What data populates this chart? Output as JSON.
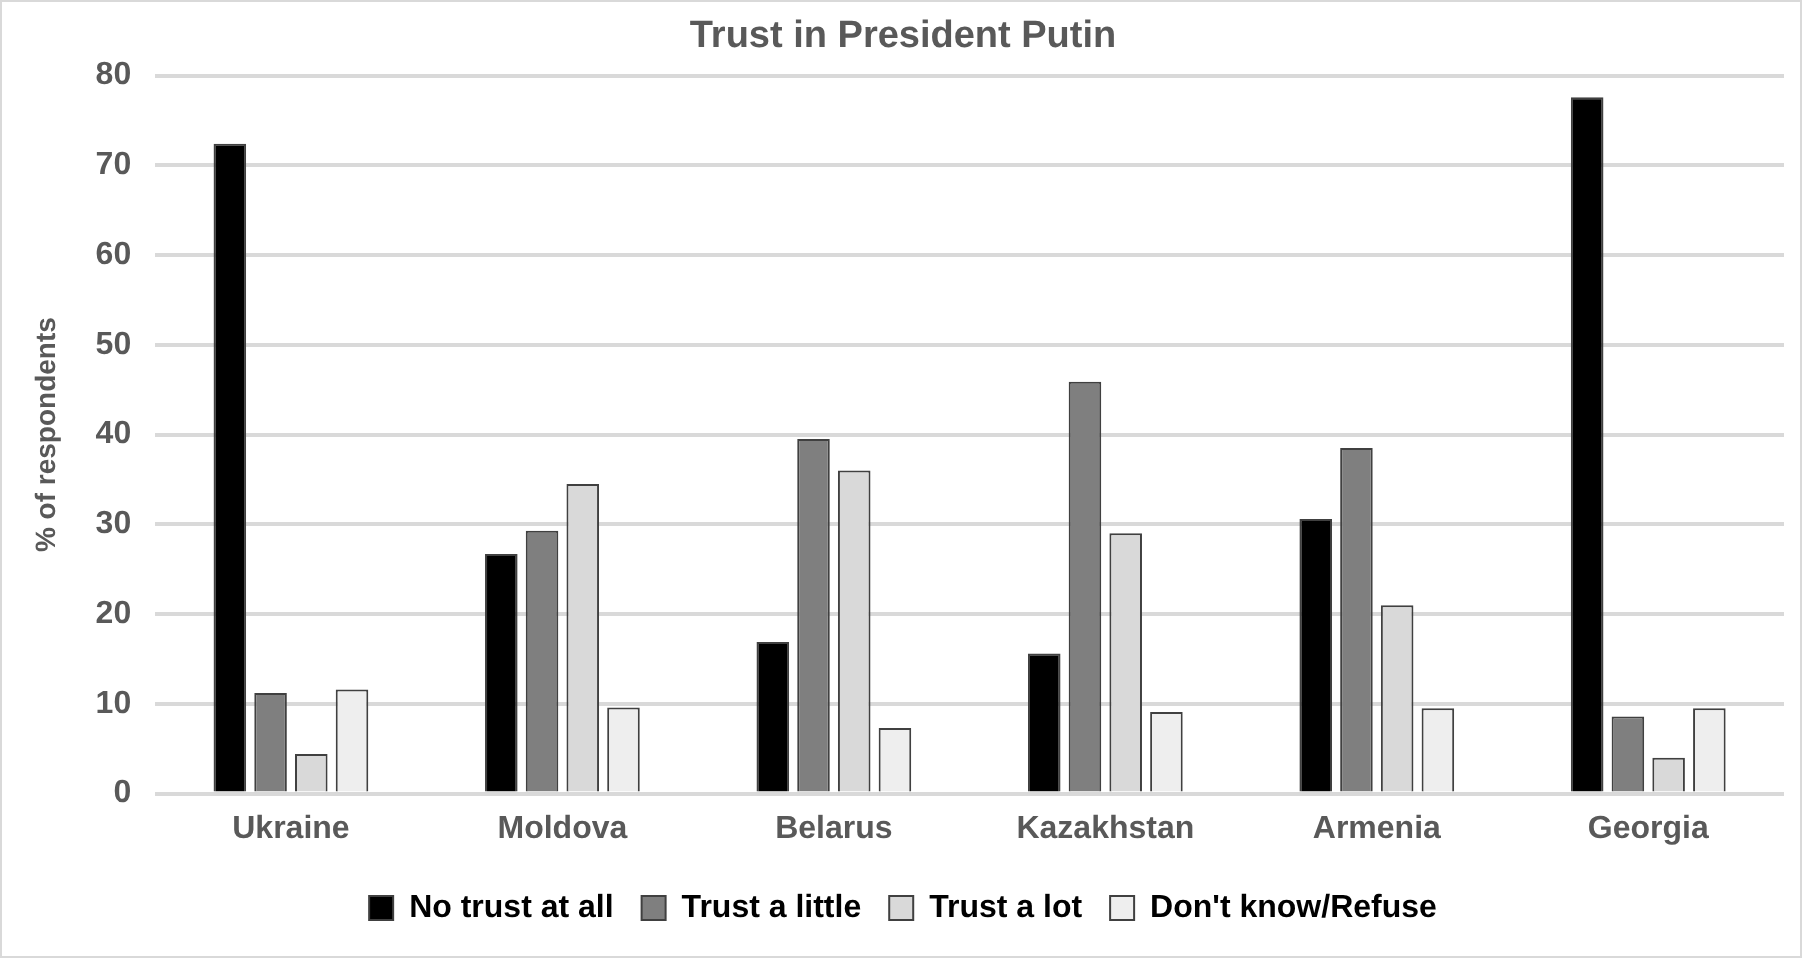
{
  "chart_data": {
    "type": "bar",
    "title": "Trust in President Putin",
    "ylabel": "% of respondents",
    "categories": [
      "Ukraine",
      "Moldova",
      "Belarus",
      "Kazakhstan",
      "Armenia",
      "Georgia"
    ],
    "series": [
      {
        "name": "No trust at all",
        "color": "#000000",
        "values": [
          72.4,
          26.7,
          16.9,
          15.6,
          30.6,
          77.6
        ]
      },
      {
        "name": "Trust a little",
        "color": "#7f7f7f",
        "values": [
          11.2,
          29.3,
          39.5,
          45.9,
          38.5,
          8.6
        ]
      },
      {
        "name": "Trust a lot",
        "color": "#d9d9d9",
        "values": [
          4.4,
          34.5,
          36.0,
          29.0,
          21.0,
          4.0
        ]
      },
      {
        "name": "Don't know/Refuse",
        "color": "#eeeeee",
        "values": [
          11.6,
          9.6,
          7.3,
          9.1,
          9.5,
          9.5
        ]
      }
    ],
    "ylim": [
      0,
      80
    ],
    "yticks": [
      0,
      10,
      20,
      30,
      40,
      50,
      60,
      70,
      80
    ],
    "grid": "y",
    "legend": "bottom"
  }
}
